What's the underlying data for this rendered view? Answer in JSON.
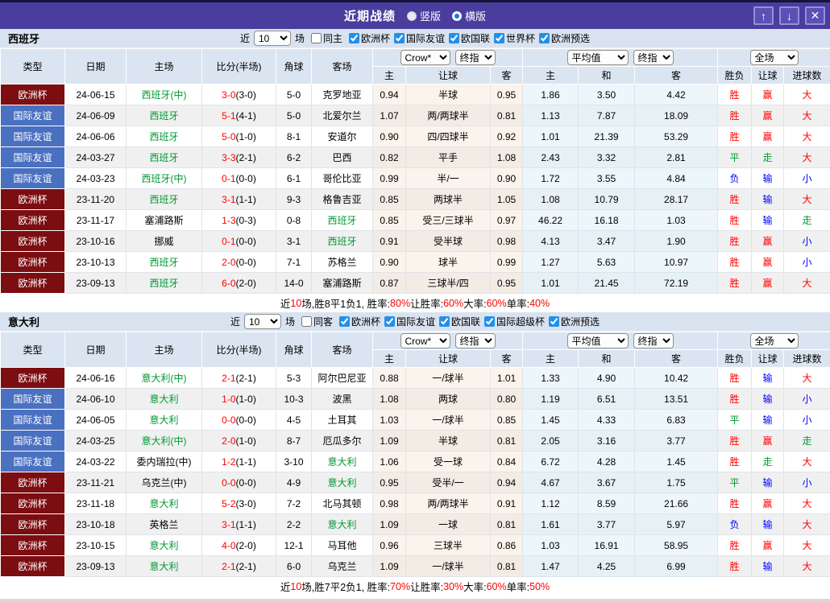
{
  "titlebar": {
    "title": "近期战绩",
    "vertical_label": "竖版",
    "horizontal_label": "横版",
    "up_icon": "↑",
    "down_icon": "↓",
    "close_icon": "✕"
  },
  "colors": {
    "titlebar_bg": "#4a3d9e",
    "button_border": "#978ed8",
    "filterbar_bg": "#d9e3f0",
    "header_bg": "#dbe5f1",
    "cup_type_bg": "#7c0d11",
    "friendly_type_bg": "#4a70c0",
    "crow_col_bg": "#fbf4ec",
    "avg_col_bg": "#edf6fa",
    "win_red": "#ff0000",
    "draw_green": "#009933",
    "lose_blue": "#0000ff"
  },
  "hdr": {
    "c1": "类型",
    "c2": "日期",
    "c3": "主场",
    "c4": "比分(半场)",
    "c5": "角球",
    "c6": "客场",
    "crow": "Crow*",
    "crow_idx": "终指",
    "avg": "平均值",
    "avg_idx": "终指",
    "full": "全场",
    "s1": "主",
    "s2": "让球",
    "s3": "客",
    "s4": "主",
    "s5": "和",
    "s6": "客",
    "s7": "胜负",
    "s8": "让球",
    "s9": "进球数"
  },
  "sections": [
    {
      "team": "西班牙",
      "filter": {
        "near": "近",
        "num": "10",
        "games": "场",
        "same": "同主",
        "leagues": [
          "欧洲杯",
          "国际友谊",
          "欧国联",
          "世界杯",
          "欧洲预选"
        ]
      },
      "rows": [
        {
          "lg": "欧洲杯",
          "lgc": "cup",
          "d": "24-06-15",
          "h": "西班牙(中)",
          "hg": true,
          "s": "3-0",
          "hf": "(3-0)",
          "ck": "5-0",
          "a": "克罗地亚",
          "ag": false,
          "o1": "0.94",
          "hd": "半球",
          "o2": "0.95",
          "m1": "1.86",
          "m2": "3.50",
          "m3": "4.42",
          "r1": [
            "胜",
            "r"
          ],
          "r2": [
            "赢",
            "r"
          ],
          "r3": [
            "大",
            "r"
          ]
        },
        {
          "lg": "国际友谊",
          "lgc": "fr",
          "d": "24-06-09",
          "h": "西班牙",
          "hg": true,
          "s": "5-1",
          "hf": "(4-1)",
          "ck": "5-0",
          "a": "北爱尔兰",
          "ag": false,
          "o1": "1.07",
          "hd": "两/两球半",
          "o2": "0.81",
          "m1": "1.13",
          "m2": "7.87",
          "m3": "18.09",
          "r1": [
            "胜",
            "r"
          ],
          "r2": [
            "赢",
            "r"
          ],
          "r3": [
            "大",
            "r"
          ]
        },
        {
          "lg": "国际友谊",
          "lgc": "fr",
          "d": "24-06-06",
          "h": "西班牙",
          "hg": true,
          "s": "5-0",
          "hf": "(1-0)",
          "ck": "8-1",
          "a": "安道尔",
          "ag": false,
          "o1": "0.90",
          "hd": "四/四球半",
          "o2": "0.92",
          "m1": "1.01",
          "m2": "21.39",
          "m3": "53.29",
          "r1": [
            "胜",
            "r"
          ],
          "r2": [
            "赢",
            "r"
          ],
          "r3": [
            "大",
            "r"
          ]
        },
        {
          "lg": "国际友谊",
          "lgc": "fr",
          "d": "24-03-27",
          "h": "西班牙",
          "hg": true,
          "s": "3-3",
          "hf": "(2-1)",
          "ck": "6-2",
          "a": "巴西",
          "ag": false,
          "o1": "0.82",
          "hd": "平手",
          "o2": "1.08",
          "m1": "2.43",
          "m2": "3.32",
          "m3": "2.81",
          "r1": [
            "平",
            "g"
          ],
          "r2": [
            "走",
            "g"
          ],
          "r3": [
            "大",
            "r"
          ]
        },
        {
          "lg": "国际友谊",
          "lgc": "fr",
          "d": "24-03-23",
          "h": "西班牙(中)",
          "hg": true,
          "s": "0-1",
          "hf": "(0-0)",
          "ck": "6-1",
          "a": "哥伦比亚",
          "ag": false,
          "o1": "0.99",
          "hd": "半/一",
          "o2": "0.90",
          "m1": "1.72",
          "m2": "3.55",
          "m3": "4.84",
          "r1": [
            "负",
            "b"
          ],
          "r2": [
            "输",
            "b"
          ],
          "r3": [
            "小",
            "b"
          ]
        },
        {
          "lg": "欧洲杯",
          "lgc": "cup",
          "d": "23-11-20",
          "h": "西班牙",
          "hg": true,
          "s": "3-1",
          "hf": "(1-1)",
          "ck": "9-3",
          "a": "格鲁吉亚",
          "ag": false,
          "o1": "0.85",
          "hd": "两球半",
          "o2": "1.05",
          "m1": "1.08",
          "m2": "10.79",
          "m3": "28.17",
          "r1": [
            "胜",
            "r"
          ],
          "r2": [
            "输",
            "b"
          ],
          "r3": [
            "大",
            "r"
          ]
        },
        {
          "lg": "欧洲杯",
          "lgc": "cup",
          "d": "23-11-17",
          "h": "塞浦路斯",
          "hg": false,
          "s": "1-3",
          "hf": "(0-3)",
          "ck": "0-8",
          "a": "西班牙",
          "ag": true,
          "o1": "0.85",
          "hd": "受三/三球半",
          "o2": "0.97",
          "m1": "46.22",
          "m2": "16.18",
          "m3": "1.03",
          "r1": [
            "胜",
            "r"
          ],
          "r2": [
            "输",
            "b"
          ],
          "r3": [
            "走",
            "g"
          ]
        },
        {
          "lg": "欧洲杯",
          "lgc": "cup",
          "d": "23-10-16",
          "h": "挪威",
          "hg": false,
          "s": "0-1",
          "hf": "(0-0)",
          "ck": "3-1",
          "a": "西班牙",
          "ag": true,
          "o1": "0.91",
          "hd": "受半球",
          "o2": "0.98",
          "m1": "4.13",
          "m2": "3.47",
          "m3": "1.90",
          "r1": [
            "胜",
            "r"
          ],
          "r2": [
            "赢",
            "r"
          ],
          "r3": [
            "小",
            "b"
          ]
        },
        {
          "lg": "欧洲杯",
          "lgc": "cup",
          "d": "23-10-13",
          "h": "西班牙",
          "hg": true,
          "s": "2-0",
          "hf": "(0-0)",
          "ck": "7-1",
          "a": "苏格兰",
          "ag": false,
          "o1": "0.90",
          "hd": "球半",
          "o2": "0.99",
          "m1": "1.27",
          "m2": "5.63",
          "m3": "10.97",
          "r1": [
            "胜",
            "r"
          ],
          "r2": [
            "赢",
            "r"
          ],
          "r3": [
            "小",
            "b"
          ]
        },
        {
          "lg": "欧洲杯",
          "lgc": "cup",
          "d": "23-09-13",
          "h": "西班牙",
          "hg": true,
          "s": "6-0",
          "hf": "(2-0)",
          "ck": "14-0",
          "a": "塞浦路斯",
          "ag": false,
          "o1": "0.87",
          "hd": "三球半/四",
          "o2": "0.95",
          "m1": "1.01",
          "m2": "21.45",
          "m3": "72.19",
          "r1": [
            "胜",
            "r"
          ],
          "r2": [
            "赢",
            "r"
          ],
          "r3": [
            "大",
            "r"
          ]
        }
      ],
      "summary": [
        [
          "近",
          "k"
        ],
        [
          "10",
          "r"
        ],
        [
          "场,胜8平1负1, 胜率:",
          "k"
        ],
        [
          "80%",
          "r"
        ],
        [
          " 让胜率:",
          "k"
        ],
        [
          "60%",
          "r"
        ],
        [
          " 大率:",
          "k"
        ],
        [
          "60%",
          "r"
        ],
        [
          " 单率:",
          "k"
        ],
        [
          "40%",
          "r"
        ]
      ]
    },
    {
      "team": "意大利",
      "filter": {
        "near": "近",
        "num": "10",
        "games": "场",
        "same": "同客",
        "leagues": [
          "欧洲杯",
          "国际友谊",
          "欧国联",
          "国际超级杯",
          "欧洲预选"
        ]
      },
      "rows": [
        {
          "lg": "欧洲杯",
          "lgc": "cup",
          "d": "24-06-16",
          "h": "意大利(中)",
          "hg": true,
          "s": "2-1",
          "hf": "(2-1)",
          "ck": "5-3",
          "a": "阿尔巴尼亚",
          "ag": false,
          "o1": "0.88",
          "hd": "一/球半",
          "o2": "1.01",
          "m1": "1.33",
          "m2": "4.90",
          "m3": "10.42",
          "r1": [
            "胜",
            "r"
          ],
          "r2": [
            "输",
            "b"
          ],
          "r3": [
            "大",
            "r"
          ]
        },
        {
          "lg": "国际友谊",
          "lgc": "fr",
          "d": "24-06-10",
          "h": "意大利",
          "hg": true,
          "s": "1-0",
          "hf": "(1-0)",
          "ck": "10-3",
          "a": "波黑",
          "ag": false,
          "o1": "1.08",
          "hd": "两球",
          "o2": "0.80",
          "m1": "1.19",
          "m2": "6.51",
          "m3": "13.51",
          "r1": [
            "胜",
            "r"
          ],
          "r2": [
            "输",
            "b"
          ],
          "r3": [
            "小",
            "b"
          ]
        },
        {
          "lg": "国际友谊",
          "lgc": "fr",
          "d": "24-06-05",
          "h": "意大利",
          "hg": true,
          "s": "0-0",
          "hf": "(0-0)",
          "ck": "4-5",
          "a": "土耳其",
          "ag": false,
          "o1": "1.03",
          "hd": "一/球半",
          "o2": "0.85",
          "m1": "1.45",
          "m2": "4.33",
          "m3": "6.83",
          "r1": [
            "平",
            "g"
          ],
          "r2": [
            "输",
            "b"
          ],
          "r3": [
            "小",
            "b"
          ]
        },
        {
          "lg": "国际友谊",
          "lgc": "fr",
          "d": "24-03-25",
          "h": "意大利(中)",
          "hg": true,
          "s": "2-0",
          "hf": "(1-0)",
          "ck": "8-7",
          "a": "厄瓜多尔",
          "ag": false,
          "o1": "1.09",
          "hd": "半球",
          "o2": "0.81",
          "m1": "2.05",
          "m2": "3.16",
          "m3": "3.77",
          "r1": [
            "胜",
            "r"
          ],
          "r2": [
            "赢",
            "r"
          ],
          "r3": [
            "走",
            "g"
          ]
        },
        {
          "lg": "国际友谊",
          "lgc": "fr",
          "d": "24-03-22",
          "h": "委内瑞拉(中)",
          "hg": false,
          "s": "1-2",
          "hf": "(1-1)",
          "ck": "3-10",
          "a": "意大利",
          "ag": true,
          "o1": "1.06",
          "hd": "受一球",
          "o2": "0.84",
          "m1": "6.72",
          "m2": "4.28",
          "m3": "1.45",
          "r1": [
            "胜",
            "r"
          ],
          "r2": [
            "走",
            "g"
          ],
          "r3": [
            "大",
            "r"
          ]
        },
        {
          "lg": "欧洲杯",
          "lgc": "cup",
          "d": "23-11-21",
          "h": "乌克兰(中)",
          "hg": false,
          "s": "0-0",
          "hf": "(0-0)",
          "ck": "4-9",
          "a": "意大利",
          "ag": true,
          "o1": "0.95",
          "hd": "受半/一",
          "o2": "0.94",
          "m1": "4.67",
          "m2": "3.67",
          "m3": "1.75",
          "r1": [
            "平",
            "g"
          ],
          "r2": [
            "输",
            "b"
          ],
          "r3": [
            "小",
            "b"
          ]
        },
        {
          "lg": "欧洲杯",
          "lgc": "cup",
          "d": "23-11-18",
          "h": "意大利",
          "hg": true,
          "s": "5-2",
          "hf": "(3-0)",
          "ck": "7-2",
          "a": "北马其顿",
          "ag": false,
          "o1": "0.98",
          "hd": "两/两球半",
          "o2": "0.91",
          "m1": "1.12",
          "m2": "8.59",
          "m3": "21.66",
          "r1": [
            "胜",
            "r"
          ],
          "r2": [
            "赢",
            "r"
          ],
          "r3": [
            "大",
            "r"
          ]
        },
        {
          "lg": "欧洲杯",
          "lgc": "cup",
          "d": "23-10-18",
          "h": "英格兰",
          "hg": false,
          "s": "3-1",
          "hf": "(1-1)",
          "ck": "2-2",
          "a": "意大利",
          "ag": true,
          "o1": "1.09",
          "hd": "一球",
          "o2": "0.81",
          "m1": "1.61",
          "m2": "3.77",
          "m3": "5.97",
          "r1": [
            "负",
            "b"
          ],
          "r2": [
            "输",
            "b"
          ],
          "r3": [
            "大",
            "r"
          ]
        },
        {
          "lg": "欧洲杯",
          "lgc": "cup",
          "d": "23-10-15",
          "h": "意大利",
          "hg": true,
          "s": "4-0",
          "hf": "(2-0)",
          "ck": "12-1",
          "a": "马耳他",
          "ag": false,
          "o1": "0.96",
          "hd": "三球半",
          "o2": "0.86",
          "m1": "1.03",
          "m2": "16.91",
          "m3": "58.95",
          "r1": [
            "胜",
            "r"
          ],
          "r2": [
            "赢",
            "r"
          ],
          "r3": [
            "大",
            "r"
          ]
        },
        {
          "lg": "欧洲杯",
          "lgc": "cup",
          "d": "23-09-13",
          "h": "意大利",
          "hg": true,
          "s": "2-1",
          "hf": "(2-1)",
          "ck": "6-0",
          "a": "乌克兰",
          "ag": false,
          "o1": "1.09",
          "hd": "一/球半",
          "o2": "0.81",
          "m1": "1.47",
          "m2": "4.25",
          "m3": "6.99",
          "r1": [
            "胜",
            "r"
          ],
          "r2": [
            "输",
            "b"
          ],
          "r3": [
            "大",
            "r"
          ]
        }
      ],
      "summary": [
        [
          "近",
          "k"
        ],
        [
          "10",
          "r"
        ],
        [
          "场,胜7平2负1, 胜率:",
          "k"
        ],
        [
          "70%",
          "r"
        ],
        [
          " 让胜率:",
          "k"
        ],
        [
          "30%",
          "r"
        ],
        [
          " 大率:",
          "k"
        ],
        [
          "60%",
          "r"
        ],
        [
          " 单率:",
          "k"
        ],
        [
          "50%",
          "r"
        ]
      ]
    }
  ]
}
